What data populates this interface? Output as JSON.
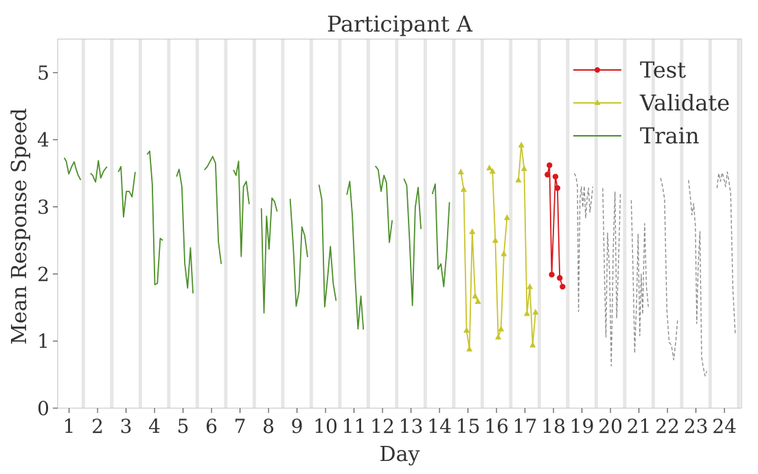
{
  "chart_data": {
    "type": "line",
    "title": "Participant A",
    "xlabel": "Day",
    "ylabel": "Mean Response Speed",
    "xlim": [
      0.6,
      24.6
    ],
    "ylim": [
      0,
      5.5
    ],
    "yticks": [
      0,
      1,
      2,
      3,
      4,
      5
    ],
    "xticks": [
      1,
      2,
      3,
      4,
      5,
      6,
      7,
      8,
      9,
      10,
      11,
      12,
      13,
      14,
      15,
      16,
      17,
      18,
      19,
      20,
      21,
      22,
      23,
      24
    ],
    "legend_position": "top-right",
    "legend": [
      {
        "label": "Test",
        "color": "#d7191c",
        "marker": "circle",
        "style": "solid"
      },
      {
        "label": "Validate",
        "color": "#c8c42c",
        "marker": "triangle",
        "style": "solid"
      },
      {
        "label": "Train",
        "color": "#4d8f2a",
        "marker": "none",
        "style": "solid"
      }
    ],
    "night_bands_at_day_boundaries": [
      1.5,
      2.5,
      3.5,
      4.5,
      5.5,
      6.5,
      7.5,
      8.5,
      9.5,
      10.5,
      11.5,
      12.5,
      13.5,
      14.5,
      15.5,
      16.5,
      17.5,
      18.5,
      19.5,
      20.5,
      21.5,
      22.5,
      23.5,
      24.5
    ],
    "series": [
      {
        "name": "Train",
        "color": "#4d8f2a",
        "days": [
          {
            "day": 1,
            "x": [
              0.83,
              0.9,
              0.99,
              1.1,
              1.18,
              1.24,
              1.32,
              1.41
            ],
            "y": [
              3.73,
              3.68,
              3.49,
              3.61,
              3.67,
              3.57,
              3.47,
              3.4
            ]
          },
          {
            "day": 2,
            "x": [
              1.75,
              1.83,
              1.93,
              2.03,
              2.11,
              2.21,
              2.33
            ],
            "y": [
              3.5,
              3.47,
              3.37,
              3.69,
              3.43,
              3.53,
              3.6
            ]
          },
          {
            "day": 3,
            "x": [
              2.73,
              2.82,
              2.91,
              3.01,
              3.11,
              3.21,
              3.32
            ],
            "y": [
              3.52,
              3.6,
              2.85,
              3.23,
              3.23,
              3.15,
              3.52
            ]
          },
          {
            "day": 4,
            "x": [
              3.74,
              3.83,
              3.92,
              4.01,
              4.1,
              4.2,
              4.29
            ],
            "y": [
              3.78,
              3.83,
              3.34,
              1.84,
              1.86,
              2.53,
              2.5
            ]
          },
          {
            "day": 5,
            "x": [
              4.77,
              4.86,
              4.96,
              5.06,
              5.16,
              5.26,
              5.35
            ],
            "y": [
              3.45,
              3.56,
              3.3,
              2.16,
              1.79,
              2.39,
              1.71
            ]
          },
          {
            "day": 6,
            "x": [
              5.75,
              5.85,
              5.94,
              6.04,
              6.14,
              6.24,
              6.34
            ],
            "y": [
              3.55,
              3.6,
              3.67,
              3.75,
              3.65,
              2.48,
              2.15
            ]
          },
          {
            "day": 7,
            "x": [
              6.77,
              6.86,
              6.95,
              7.04,
              7.12,
              7.22,
              7.32
            ],
            "y": [
              3.55,
              3.47,
              3.68,
              2.26,
              3.3,
              3.38,
              3.04
            ]
          },
          {
            "day": 8,
            "x": [
              7.75,
              7.84,
              7.93,
              8.02,
              8.12,
              8.21,
              8.3
            ],
            "y": [
              2.98,
              1.42,
              2.86,
              2.37,
              3.13,
              3.08,
              2.93
            ]
          },
          {
            "day": 9,
            "x": [
              8.76,
              8.87,
              8.97,
              9.07,
              9.17,
              9.27,
              9.37
            ],
            "y": [
              3.12,
              2.4,
              1.52,
              1.74,
              2.7,
              2.57,
              2.25
            ]
          },
          {
            "day": 10,
            "x": [
              9.77,
              9.87,
              9.97,
              10.07,
              10.17,
              10.27,
              10.37
            ],
            "y": [
              3.33,
              3.11,
              1.51,
              1.93,
              2.41,
              1.86,
              1.6
            ]
          },
          {
            "day": 11,
            "x": [
              10.75,
              10.85,
              10.94,
              11.04,
              11.14,
              11.24,
              11.33
            ],
            "y": [
              3.18,
              3.38,
              2.88,
              1.93,
              1.18,
              1.67,
              1.17
            ]
          },
          {
            "day": 12,
            "x": [
              11.75,
              11.85,
              11.95,
              12.05,
              12.14,
              12.24,
              12.34
            ],
            "y": [
              3.61,
              3.55,
              3.23,
              3.47,
              3.36,
              2.47,
              2.8
            ]
          },
          {
            "day": 13,
            "x": [
              12.75,
              12.85,
              12.95,
              13.05,
              13.15,
              13.25,
              13.35
            ],
            "y": [
              3.42,
              3.32,
              2.51,
              1.53,
              2.99,
              3.29,
              2.67
            ]
          },
          {
            "day": 14,
            "x": [
              13.75,
              13.85,
              13.95,
              14.05,
              14.15,
              14.25,
              14.35
            ],
            "y": [
              3.19,
              3.34,
              2.07,
              2.15,
              1.81,
              2.33,
              3.07
            ]
          }
        ]
      },
      {
        "name": "Validate",
        "color": "#c8c42c",
        "days": [
          {
            "day": 15,
            "x": [
              14.75,
              14.85,
              14.95,
              15.05,
              15.15,
              15.25,
              15.35
            ],
            "y": [
              3.52,
              3.26,
              1.16,
              0.88,
              2.63,
              1.67,
              1.59
            ]
          },
          {
            "day": 16,
            "x": [
              15.75,
              15.86,
              15.96,
              16.06,
              16.16,
              16.26,
              16.37
            ],
            "y": [
              3.58,
              3.53,
              2.5,
              1.06,
              1.18,
              2.3,
              2.84
            ]
          },
          {
            "day": 17,
            "x": [
              16.77,
              16.87,
              16.97,
              17.07,
              17.17,
              17.27,
              17.37
            ],
            "y": [
              3.4,
              3.92,
              3.57,
              1.41,
              1.81,
              0.94,
              1.43
            ]
          }
        ]
      },
      {
        "name": "Test",
        "color": "#d7191c",
        "days": [
          {
            "day": 18,
            "x": [
              17.79,
              17.86,
              17.94,
              18.07,
              18.14,
              18.22,
              18.32
            ],
            "y": [
              3.48,
              3.62,
              1.99,
              3.45,
              3.28,
              1.94,
              1.81
            ]
          }
        ]
      },
      {
        "color": "#8c8c8c",
        "style": "dashed",
        "days": [
          {
            "day": 19,
            "x": [
              18.73,
              18.79,
              18.84,
              18.88,
              18.93,
              18.98,
              19.03,
              19.08,
              19.13,
              19.18,
              19.23,
              19.28,
              19.33,
              19.38
            ],
            "y": [
              3.5,
              3.45,
              3.31,
              1.44,
              3.12,
              3.3,
              2.99,
              3.31,
              2.83,
              3.12,
              3.28,
              2.92,
              3.1,
              3.3
            ]
          },
          {
            "day": 20,
            "x": [
              19.73,
              19.78,
              19.84,
              19.9,
              19.97,
              20.03,
              20.1,
              20.16,
              20.22,
              20.29,
              20.35
            ],
            "y": [
              3.28,
              2.2,
              1.06,
              2.61,
              2.0,
              0.63,
              2.42,
              3.22,
              1.34,
              2.27,
              3.2
            ]
          },
          {
            "day": 21,
            "x": [
              20.73,
              20.79,
              20.85,
              20.92,
              20.97,
              21.03,
              21.08,
              21.13,
              21.2,
              21.26,
              21.33
            ],
            "y": [
              3.1,
              2.1,
              0.82,
              1.64,
              2.6,
              1.08,
              2.0,
              1.4,
              2.75,
              1.82,
              1.51
            ]
          },
          {
            "day": 22,
            "x": [
              21.76,
              21.83,
              21.9,
              21.98,
              22.06,
              22.14,
              22.22,
              22.3,
              22.36
            ],
            "y": [
              3.43,
              3.3,
              3.12,
              1.46,
              0.98,
              0.94,
              0.72,
              1.02,
              1.33
            ]
          },
          {
            "day": 23,
            "x": [
              22.74,
              22.8,
              22.86,
              22.92,
              22.98,
              23.03,
              23.08,
              23.14,
              23.2,
              23.26,
              23.32,
              23.38
            ],
            "y": [
              3.4,
              3.16,
              2.88,
              3.05,
              2.71,
              1.26,
              2.12,
              2.63,
              0.76,
              0.6,
              0.48,
              0.55
            ]
          },
          {
            "day": 24,
            "x": [
              23.74,
              23.8,
              23.86,
              23.92,
              23.98,
              24.04,
              24.1,
              24.16,
              24.22,
              24.3,
              24.38
            ],
            "y": [
              3.28,
              3.5,
              3.38,
              3.51,
              3.42,
              3.3,
              3.52,
              3.38,
              3.2,
              1.75,
              1.1
            ]
          }
        ]
      }
    ]
  }
}
